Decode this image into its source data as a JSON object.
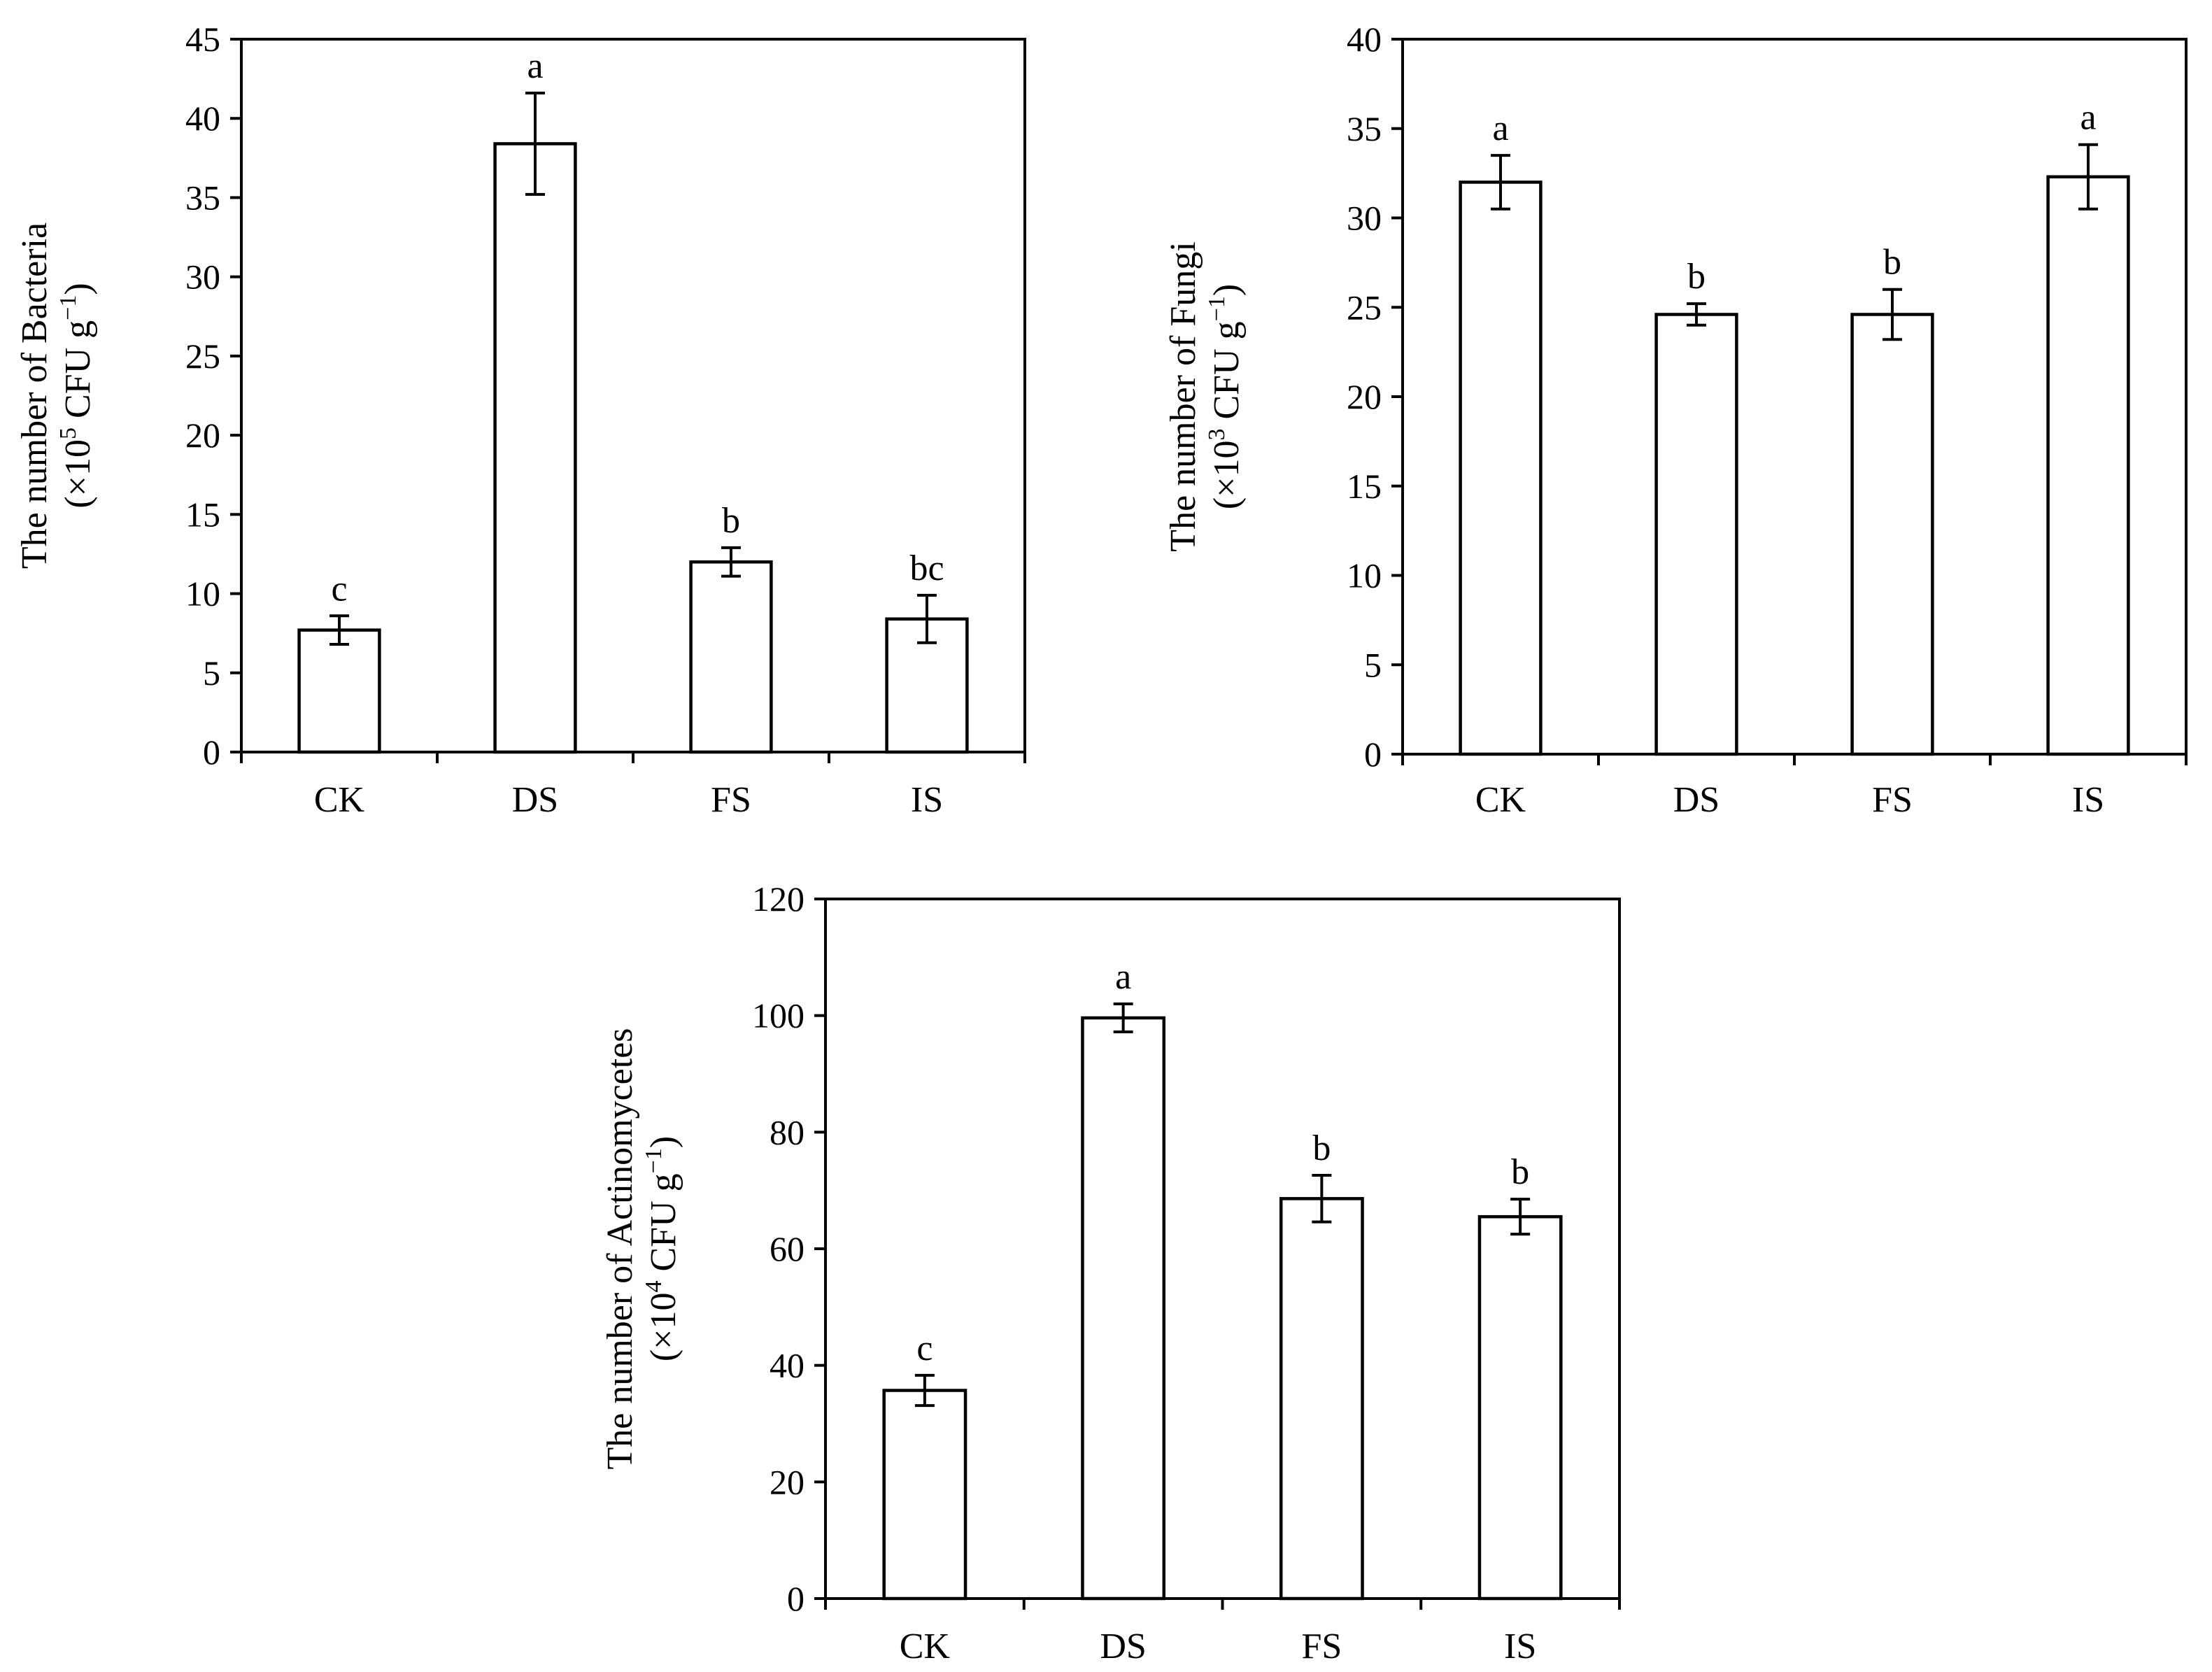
{
  "chart_data": [
    {
      "id": "bacteria",
      "type": "bar",
      "ylabel_line1": "The number  of Bacteria",
      "ylabel_line2_pre": "(×10",
      "ylabel_line2_exp": "5",
      "ylabel_line2_mid": " CFU g",
      "ylabel_line2_sup": "−1",
      "ylabel_line2_post": ")",
      "categories": [
        "CK",
        "DS",
        "FS",
        "IS"
      ],
      "values": [
        7.7,
        38.4,
        12.0,
        8.4
      ],
      "errors": [
        0.9,
        3.2,
        0.9,
        1.5
      ],
      "significance": [
        "c",
        "a",
        "b",
        "bc"
      ],
      "ylim": [
        0,
        45
      ],
      "yticks": [
        0,
        5,
        10,
        15,
        20,
        25,
        30,
        35,
        40,
        45
      ]
    },
    {
      "id": "fungi",
      "type": "bar",
      "ylabel_line1": "The number  of  Fungi",
      "ylabel_line2_pre": "(×10",
      "ylabel_line2_exp": "3",
      "ylabel_line2_mid": " CFU g",
      "ylabel_line2_sup": "−1",
      "ylabel_line2_post": ")",
      "categories": [
        "CK",
        "DS",
        "FS",
        "IS"
      ],
      "values": [
        32.0,
        24.6,
        24.6,
        32.3
      ],
      "errors": [
        1.5,
        0.6,
        1.4,
        1.8
      ],
      "significance": [
        "a",
        "b",
        "b",
        "a"
      ],
      "ylim": [
        0,
        40
      ],
      "yticks": [
        0,
        5,
        10,
        15,
        20,
        25,
        30,
        35,
        40
      ]
    },
    {
      "id": "actinomycetes",
      "type": "bar",
      "ylabel_line1": "The number  of  Actinomycetes",
      "ylabel_line2_pre": "(×10",
      "ylabel_line2_exp": "4",
      "ylabel_line2_mid": " CFU g",
      "ylabel_line2_sup": "−1",
      "ylabel_line2_post": ")",
      "categories": [
        "CK",
        "DS",
        "FS",
        "IS"
      ],
      "values": [
        35.7,
        99.6,
        68.6,
        65.5
      ],
      "errors": [
        2.6,
        2.4,
        4.0,
        3.0
      ],
      "significance": [
        "c",
        "a",
        "b",
        "b"
      ],
      "ylim": [
        0,
        120
      ],
      "yticks": [
        0,
        20,
        40,
        60,
        80,
        100,
        120
      ]
    }
  ]
}
